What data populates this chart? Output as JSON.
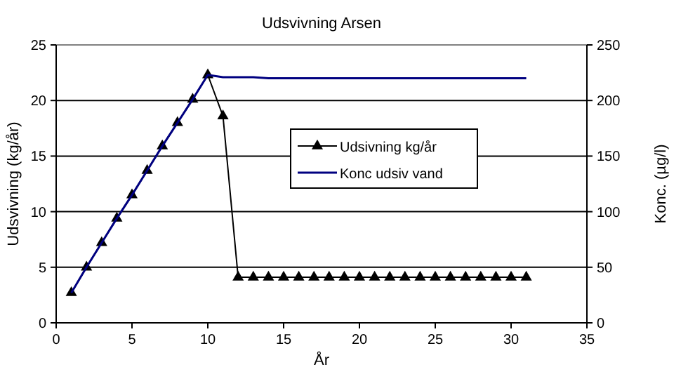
{
  "chart_data": {
    "type": "line",
    "title": "Udsvivning Arsen",
    "xlabel": "År",
    "ylabel": "Udsvivning  (kg/år)",
    "y2label": "Konc.  (µg/l)",
    "x": [
      1,
      2,
      3,
      4,
      5,
      6,
      7,
      8,
      9,
      10,
      11,
      12,
      13,
      14,
      15,
      16,
      17,
      18,
      19,
      20,
      21,
      22,
      23,
      24,
      25,
      26,
      27,
      28,
      29,
      30,
      31
    ],
    "series": [
      {
        "name": "Udsivning kg/år",
        "color": "#000000",
        "marker": "triangle",
        "values": [
          2.7,
          5.0,
          7.2,
          9.4,
          11.5,
          13.7,
          15.9,
          18.0,
          20.1,
          22.3,
          18.6,
          4.1,
          4.1,
          4.1,
          4.1,
          4.1,
          4.1,
          4.1,
          4.1,
          4.1,
          4.1,
          4.1,
          4.1,
          4.1,
          4.1,
          4.1,
          4.1,
          4.1,
          4.1,
          4.1,
          4.1
        ]
      },
      {
        "name": "Konc udsiv vand",
        "color": "#000080",
        "axis": "y2",
        "values": [
          27,
          50,
          72,
          94,
          115,
          137,
          159,
          180,
          201,
          223,
          221,
          221,
          221,
          220,
          220,
          220,
          220,
          220,
          220,
          220,
          220,
          220,
          220,
          220,
          220,
          220,
          220,
          220,
          220,
          220,
          220
        ]
      }
    ],
    "xlim": [
      0,
      35
    ],
    "xticks": [
      0,
      5,
      10,
      15,
      20,
      25,
      30,
      35
    ],
    "ylim": [
      0,
      25
    ],
    "yticks": [
      0,
      5,
      10,
      15,
      20,
      25
    ],
    "y2lim": [
      0,
      250
    ],
    "y2ticks": [
      0,
      50,
      100,
      150,
      200,
      250
    ],
    "grid": "y",
    "legend": "right"
  }
}
